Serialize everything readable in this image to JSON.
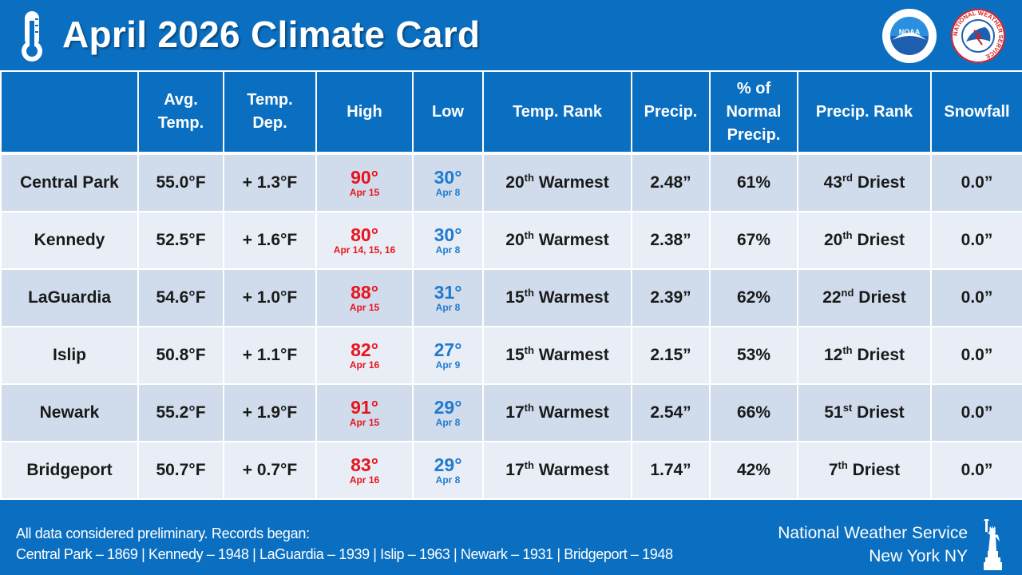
{
  "header": {
    "title": "April 2026 Climate Card",
    "thermometer_icon": "thermometer-icon",
    "logos": [
      "noaa-logo",
      "nws-logo"
    ],
    "noaa_text": "NOAA",
    "nws_ring_text": "NATIONAL WEATHER SERVICE"
  },
  "colors": {
    "background": "#0b6fc1",
    "row_odd": "#d0dcec",
    "row_even": "#e9eef6",
    "high": "#e8141c",
    "low": "#1f7ad0"
  },
  "columns": {
    "avg_temp_1": "Avg.",
    "avg_temp_2": "Temp.",
    "temp_dep_1": "Temp.",
    "temp_dep_2": "Dep.",
    "high": "High",
    "low": "Low",
    "temp_rank": "Temp. Rank",
    "precip": "Precip.",
    "pct_normal_1": "% of",
    "pct_normal_2": "Normal",
    "pct_normal_3": "Precip.",
    "precip_rank": "Precip. Rank",
    "snowfall": "Snowfall"
  },
  "rows": [
    {
      "station": "Central Park",
      "avg": "55.0°F",
      "dep": "+ 1.3°F",
      "high": "90°",
      "high_date": "Apr 15",
      "low": "30°",
      "low_date": "Apr 8",
      "trank_num": "20",
      "trank_suf": "th",
      "trank_word": "Warmest",
      "precip": "2.48”",
      "pct": "61%",
      "prank_num": "43",
      "prank_suf": "rd",
      "prank_word": "Driest",
      "snow": "0.0”"
    },
    {
      "station": "Kennedy",
      "avg": "52.5°F",
      "dep": "+ 1.6°F",
      "high": "80°",
      "high_date": "Apr 14, 15, 16",
      "low": "30°",
      "low_date": "Apr 8",
      "trank_num": "20",
      "trank_suf": "th",
      "trank_word": "Warmest",
      "precip": "2.38”",
      "pct": "67%",
      "prank_num": "20",
      "prank_suf": "th",
      "prank_word": "Driest",
      "snow": "0.0”"
    },
    {
      "station": "LaGuardia",
      "avg": "54.6°F",
      "dep": "+ 1.0°F",
      "high": "88°",
      "high_date": "Apr 15",
      "low": "31°",
      "low_date": "Apr 8",
      "trank_num": "15",
      "trank_suf": "th",
      "trank_word": "Warmest",
      "precip": "2.39”",
      "pct": "62%",
      "prank_num": "22",
      "prank_suf": "nd",
      "prank_word": "Driest",
      "snow": "0.0”"
    },
    {
      "station": "Islip",
      "avg": "50.8°F",
      "dep": "+ 1.1°F",
      "high": "82°",
      "high_date": "Apr 16",
      "low": "27°",
      "low_date": "Apr 9",
      "trank_num": "15",
      "trank_suf": "th",
      "trank_word": "Warmest",
      "precip": "2.15”",
      "pct": "53%",
      "prank_num": "12",
      "prank_suf": "th",
      "prank_word": "Driest",
      "snow": "0.0”"
    },
    {
      "station": "Newark",
      "avg": "55.2°F",
      "dep": "+ 1.9°F",
      "high": "91°",
      "high_date": "Apr 15",
      "low": "29°",
      "low_date": "Apr 8",
      "trank_num": "17",
      "trank_suf": "th",
      "trank_word": "Warmest",
      "precip": "2.54”",
      "pct": "66%",
      "prank_num": "51",
      "prank_suf": "st",
      "prank_word": "Driest",
      "snow": "0.0”"
    },
    {
      "station": "Bridgeport",
      "avg": "50.7°F",
      "dep": "+ 0.7°F",
      "high": "83°",
      "high_date": "Apr 16",
      "low": "29°",
      "low_date": "Apr 8",
      "trank_num": "17",
      "trank_suf": "th",
      "trank_word": "Warmest",
      "precip": "1.74”",
      "pct": "42%",
      "prank_num": "7",
      "prank_suf": "th",
      "prank_word": "Driest",
      "snow": "0.0”"
    }
  ],
  "footer": {
    "note_line1": "All data considered preliminary. Records began:",
    "note_line2": "Central Park – 1869  |  Kennedy – 1948  |  LaGuardia – 1939  |  Islip – 1963  |  Newark – 1931  |  Bridgeport – 1948",
    "office_line1": "National Weather Service",
    "office_line2": "New York NY",
    "statue_icon": "statue-of-liberty-icon"
  }
}
